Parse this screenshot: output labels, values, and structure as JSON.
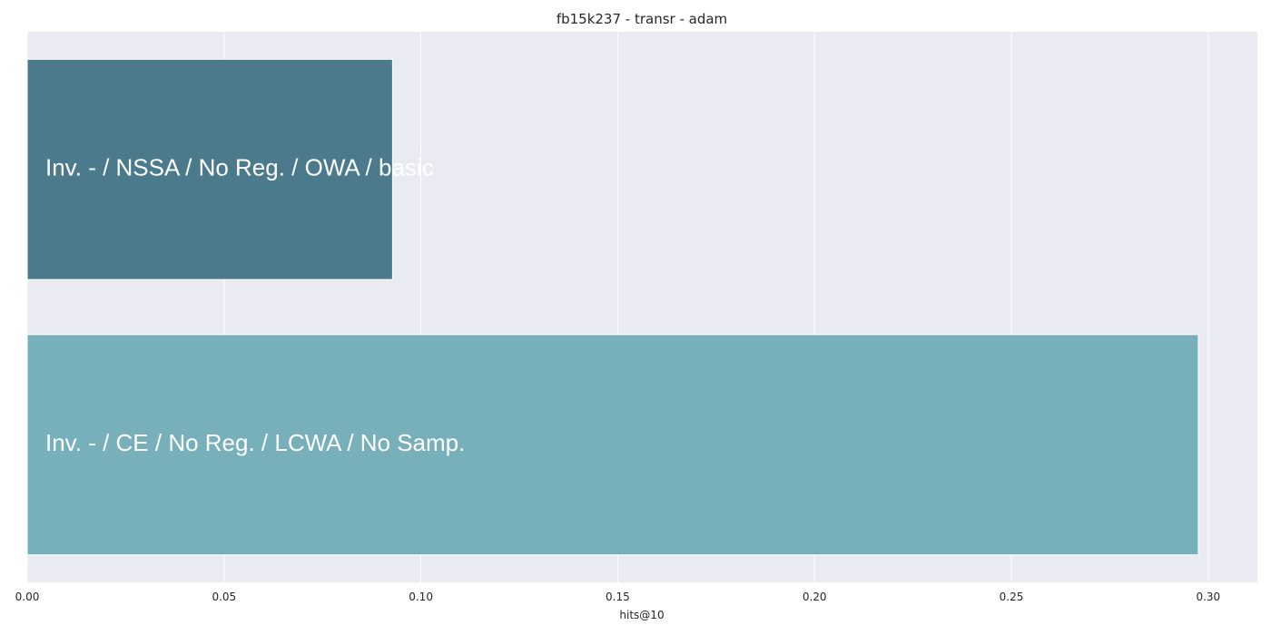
{
  "chart_data": {
    "type": "bar",
    "orientation": "horizontal",
    "title": "fb15k237 - transr - adam",
    "xlabel": "hits@10",
    "ylabel": "",
    "xlim": [
      0,
      0.3125
    ],
    "xticks": [
      0.0,
      0.05,
      0.1,
      0.15,
      0.2,
      0.25,
      0.3
    ],
    "xtick_labels": [
      "0.00",
      "0.05",
      "0.10",
      "0.15",
      "0.20",
      "0.25",
      "0.30"
    ],
    "grid": true,
    "background_color": "#EAEAF2",
    "grid_color": "#FFFFFF",
    "categories": [
      "Inv. - / NSSA / No Reg. / OWA / basic",
      "Inv. - / CE / No Reg. / LCWA / No Samp."
    ],
    "values": [
      0.0928,
      0.2975
    ],
    "colors": [
      "#4A7A8C",
      "#77B0BA"
    ]
  }
}
